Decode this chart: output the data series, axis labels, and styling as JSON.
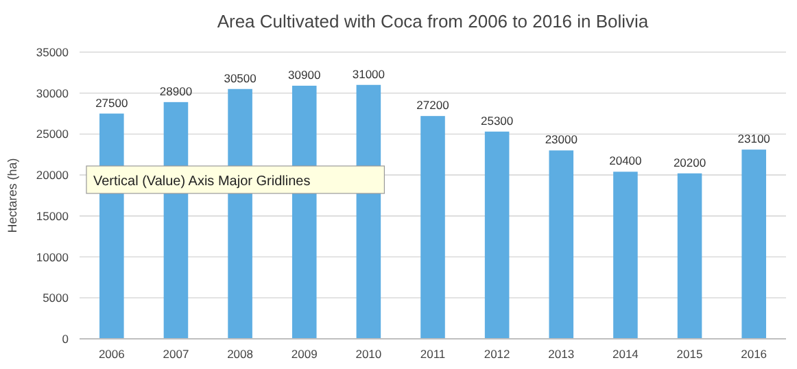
{
  "chart_data": {
    "type": "bar",
    "title": "Area Cultivated with Coca from 2006 to 2016 in Bolivia",
    "ylabel": "Hectares (ha)",
    "categories": [
      "2006",
      "2007",
      "2008",
      "2009",
      "2010",
      "2011",
      "2012",
      "2013",
      "2014",
      "2015",
      "2016"
    ],
    "values": [
      27500,
      28900,
      30500,
      30900,
      31000,
      27200,
      25300,
      23000,
      20400,
      20200,
      23100
    ],
    "color": "#5dade2",
    "ylim": [
      0,
      35000
    ],
    "yticks": [
      0,
      5000,
      10000,
      15000,
      20000,
      25000,
      30000,
      35000
    ],
    "grid": true,
    "data_labels": true,
    "annotations": [
      "Vertical (Value) Axis Major Gridlines"
    ]
  }
}
